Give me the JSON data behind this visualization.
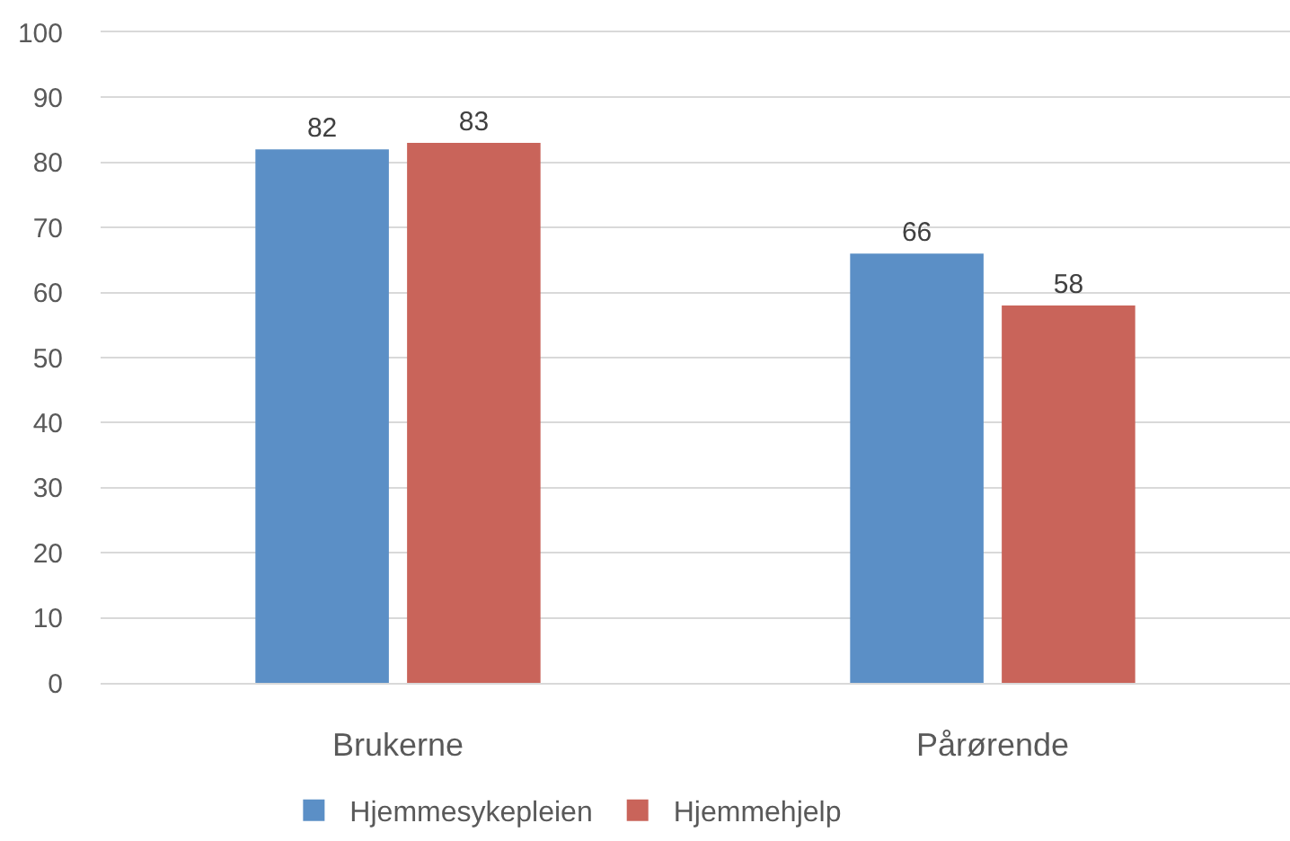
{
  "chart_data": {
    "type": "bar",
    "categories": [
      "Brukerne",
      "Pårørende"
    ],
    "series": [
      {
        "name": "Hjemmesykepleien",
        "color": "#5b8fc6",
        "values": [
          82,
          66
        ]
      },
      {
        "name": "Hjemmehjelp",
        "color": "#c9645a",
        "values": [
          83,
          58
        ]
      }
    ],
    "ylim": [
      0,
      100
    ],
    "yticks": [
      0,
      10,
      20,
      30,
      40,
      50,
      60,
      70,
      80,
      90,
      100
    ],
    "grid": "y",
    "legend": "bottom",
    "data_labels": true
  }
}
